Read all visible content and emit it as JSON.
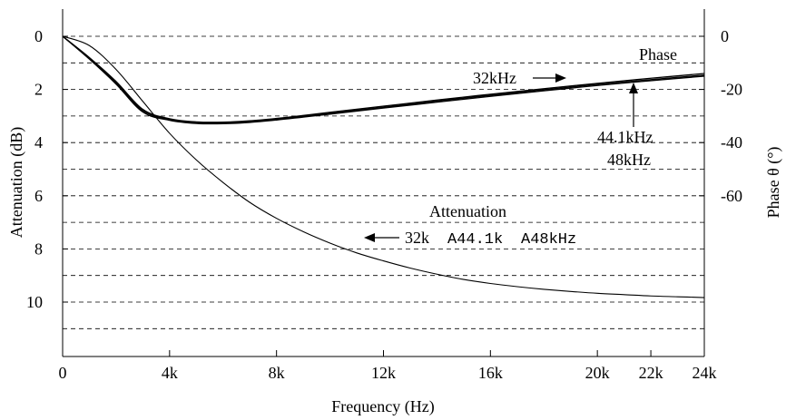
{
  "chart_data": {
    "type": "line",
    "xlabel": "Frequency (Hz)",
    "ylabel": "Attenuation (dB)",
    "y2label": "Phase θ (°)",
    "x_ticks": [
      {
        "value": 0,
        "label": "0"
      },
      {
        "value": 4000,
        "label": "4k"
      },
      {
        "value": 8000,
        "label": "8k"
      },
      {
        "value": 12000,
        "label": "12k"
      },
      {
        "value": 16000,
        "label": "16k"
      },
      {
        "value": 20000,
        "label": "20k"
      },
      {
        "value": 22000,
        "label": "22k"
      },
      {
        "value": 24000,
        "label": "24k"
      }
    ],
    "y_ticks": [
      {
        "value": 0,
        "label": "0"
      },
      {
        "value": 2,
        "label": "2"
      },
      {
        "value": 4,
        "label": "4"
      },
      {
        "value": 6,
        "label": "6"
      },
      {
        "value": 8,
        "label": "8"
      },
      {
        "value": 10,
        "label": "10"
      }
    ],
    "y2_ticks": [
      {
        "value": 0,
        "label": "0"
      },
      {
        "value": -20,
        "label": "-20"
      },
      {
        "value": -40,
        "label": "-40"
      },
      {
        "value": -60,
        "label": "-60"
      }
    ],
    "xlim": [
      0,
      24000
    ],
    "ylim": [
      0,
      12
    ],
    "y_inverted": true,
    "y2_factor": -10,
    "grid_dB": [
      0,
      1,
      2,
      3,
      4,
      5,
      6,
      7,
      8,
      9,
      10,
      11
    ],
    "series": [
      {
        "name": "Attenuation",
        "x": [
          0,
          1000,
          2000,
          3000,
          4000,
          5000,
          6000,
          7000,
          8000,
          9000,
          10000,
          11000,
          12000,
          13000,
          14000,
          15000,
          16000,
          17000,
          18000,
          19000,
          20000,
          21000,
          22000,
          23000,
          24000
        ],
        "y": [
          0,
          0.35,
          1.25,
          2.45,
          3.65,
          4.65,
          5.5,
          6.25,
          6.85,
          7.35,
          7.78,
          8.15,
          8.45,
          8.72,
          8.95,
          9.15,
          9.3,
          9.42,
          9.52,
          9.6,
          9.67,
          9.72,
          9.77,
          9.8,
          9.83
        ]
      },
      {
        "name": "32kHz",
        "x": [
          0,
          1000,
          2000,
          3000,
          4000,
          5000,
          6000,
          7000,
          8000,
          9000,
          10000,
          12000,
          14000,
          16000,
          18000,
          20000,
          22000,
          24000
        ],
        "y": [
          0,
          -8,
          -17,
          -27.5,
          -31,
          -32.2,
          -32.3,
          -31.8,
          -30.9,
          -29.8,
          -28.6,
          -26.3,
          -24,
          -21.8,
          -19.7,
          -17.7,
          -15.8,
          -14
        ]
      },
      {
        "name": "44.1kHz",
        "x": [
          0,
          1000,
          2000,
          3000,
          4000,
          5000,
          6000,
          7000,
          8000,
          9000,
          10000,
          12000,
          14000,
          16000,
          18000,
          20000,
          22000,
          24000
        ],
        "y": [
          0,
          -8.3,
          -17.5,
          -28,
          -31.3,
          -32.5,
          -32.6,
          -32.1,
          -31.2,
          -30.1,
          -29,
          -26.7,
          -24.4,
          -22.2,
          -20.1,
          -18.1,
          -16.3,
          -14.6
        ]
      },
      {
        "name": "48kHz",
        "x": [
          0,
          1000,
          2000,
          3000,
          4000,
          5000,
          6000,
          7000,
          8000,
          9000,
          10000,
          12000,
          14000,
          16000,
          18000,
          20000,
          22000,
          24000
        ],
        "y": [
          0,
          -8.6,
          -18,
          -28.5,
          -31.6,
          -32.8,
          -32.9,
          -32.4,
          -31.5,
          -30.4,
          -29.3,
          -27,
          -24.8,
          -22.6,
          -20.5,
          -18.5,
          -16.7,
          -15
        ]
      }
    ],
    "annotations": {
      "phase_label": "Phase",
      "phase_32k": "32kHz",
      "phase_44k": "44.1kHz",
      "phase_48k": "48kHz",
      "attenuation_label": "Attenuation",
      "attenuation_32k": "32k",
      "attenuation_44k": "A44.1k",
      "attenuation_48k": "A48kHz"
    }
  }
}
